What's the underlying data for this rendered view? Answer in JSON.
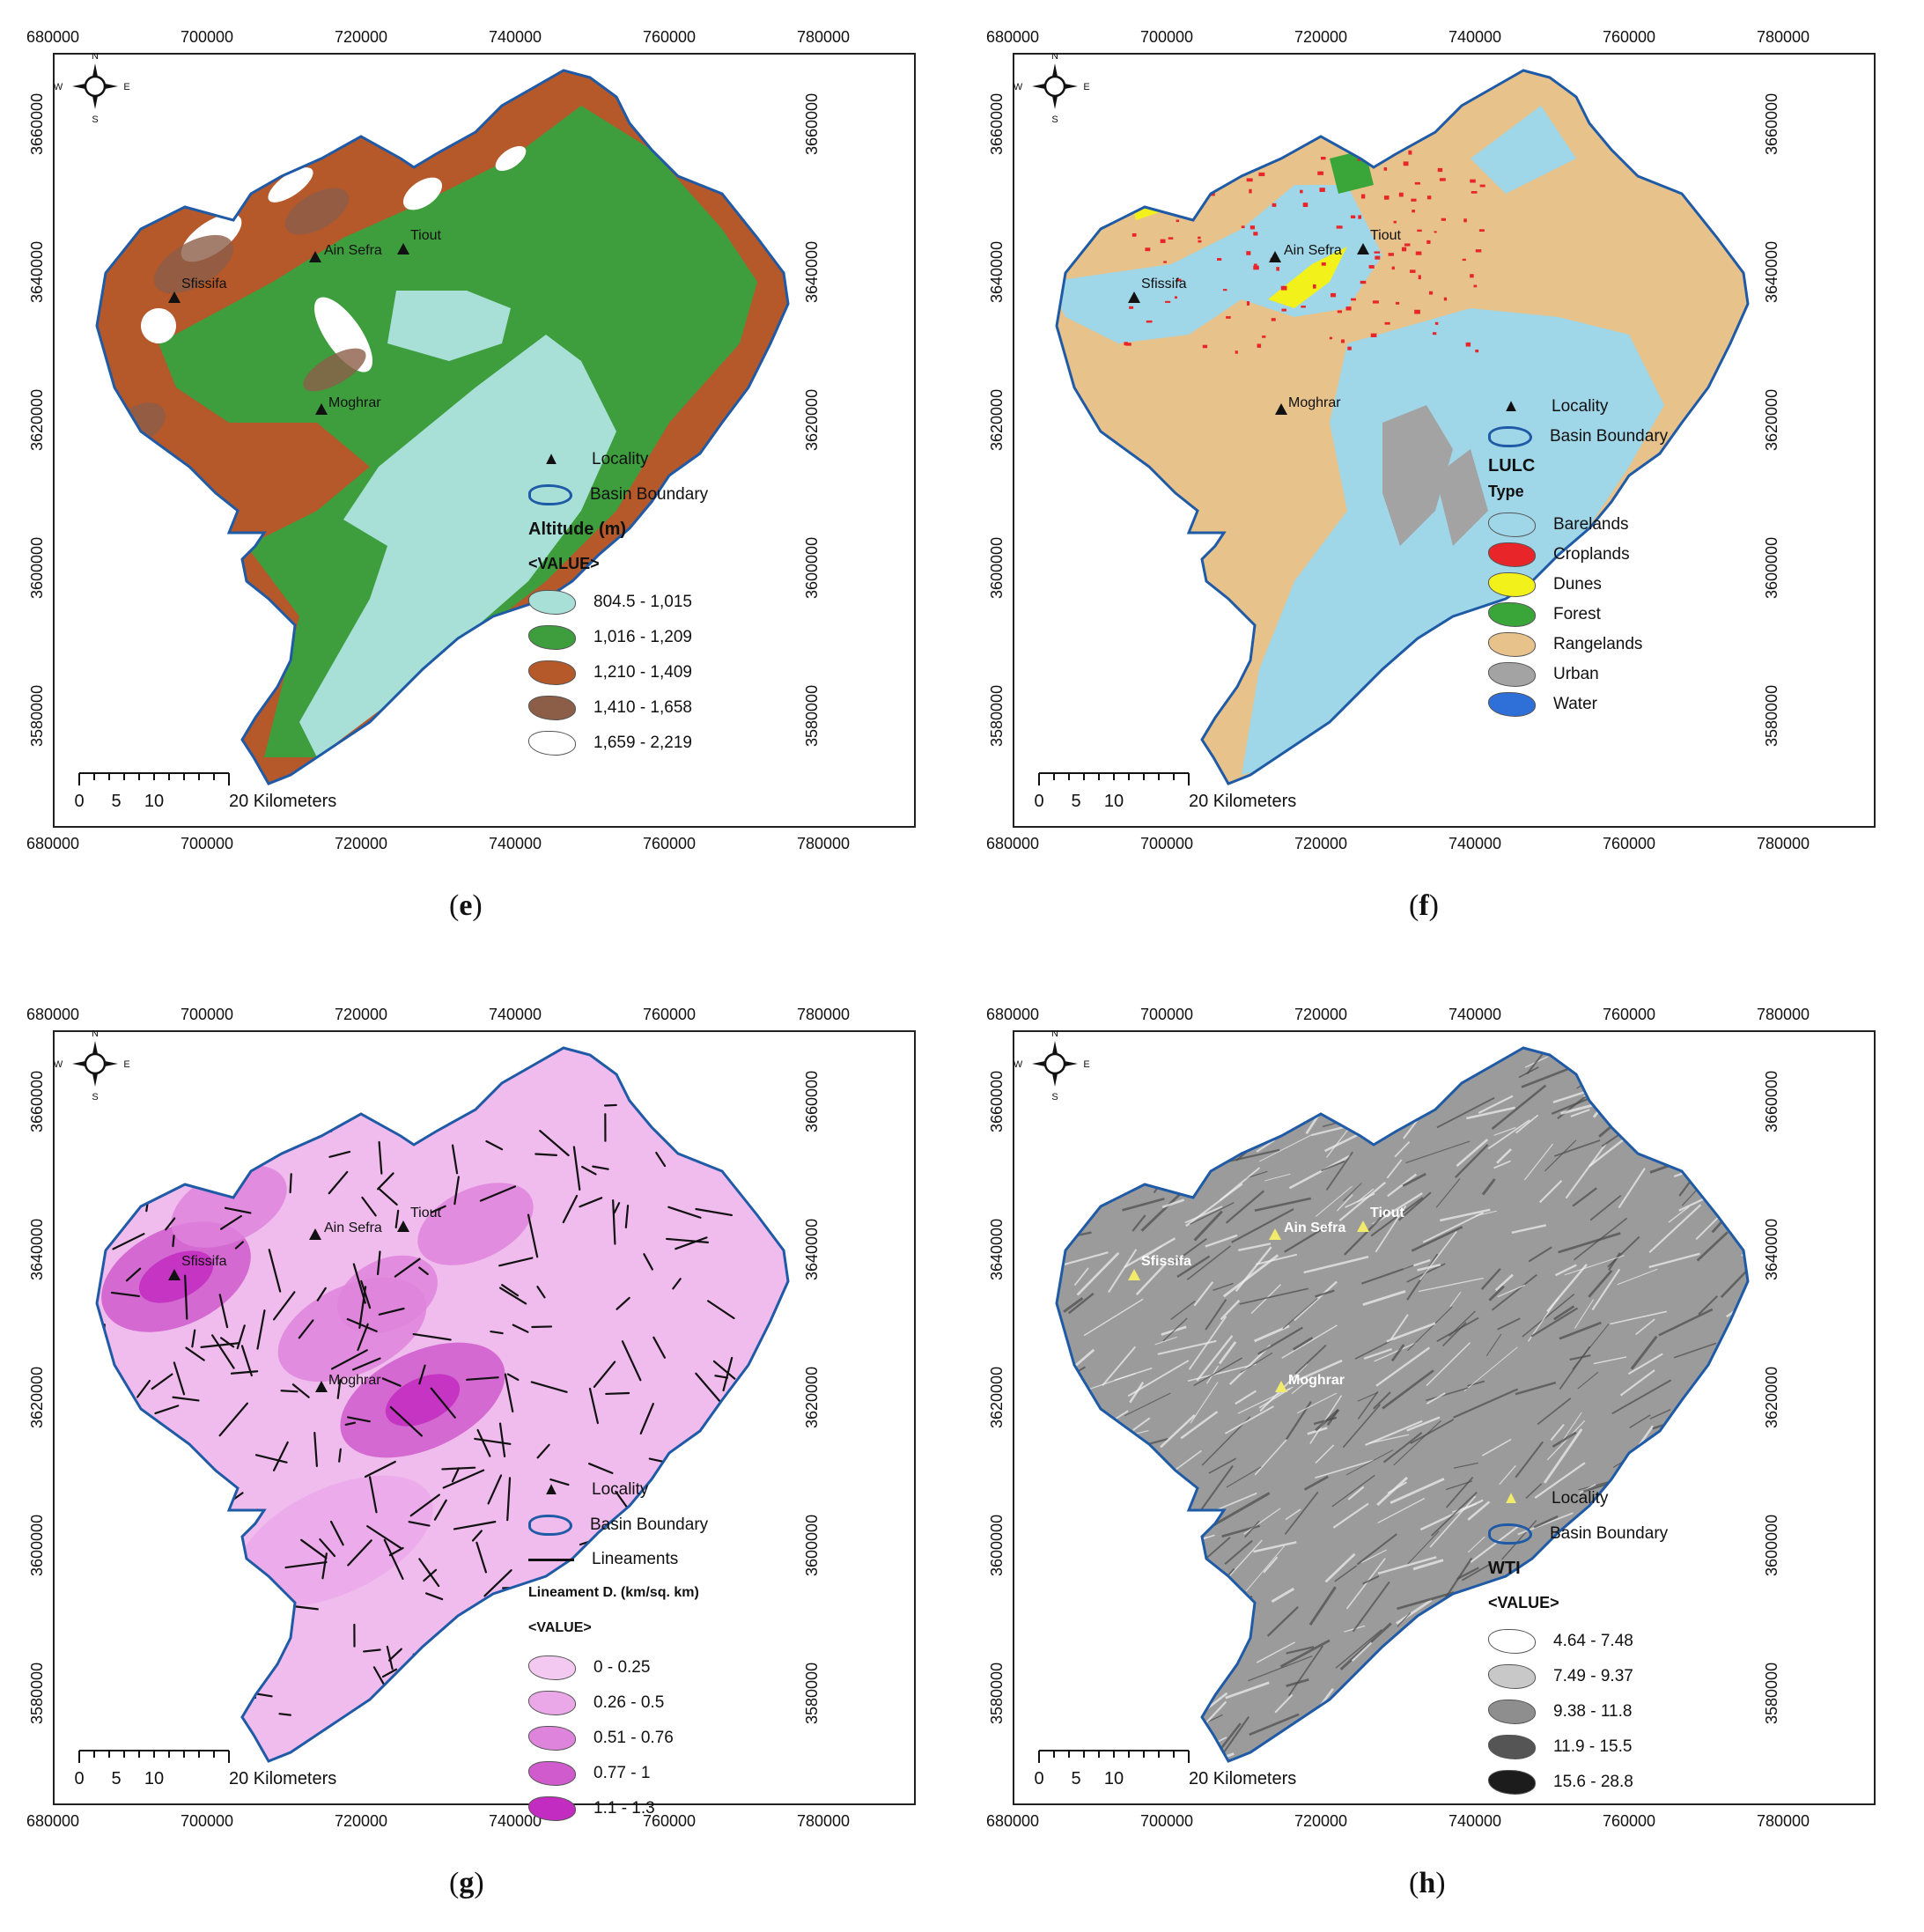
{
  "x_ticks": [
    "680000",
    "700000",
    "720000",
    "740000",
    "760000",
    "780000"
  ],
  "y_ticks": [
    "3660000",
    "3640000",
    "3620000",
    "3600000",
    "3580000"
  ],
  "compass": {
    "n": "N",
    "s": "S",
    "e": "E",
    "w": "W"
  },
  "scale": {
    "labels": [
      "0",
      "5",
      "10",
      "20 Kilometers"
    ]
  },
  "localities": [
    "Ain Sefra",
    "Tiout",
    "Sfissifa",
    "Moghrar"
  ],
  "panels": {
    "e": {
      "label": "e",
      "legend": {
        "locality": "Locality",
        "boundary": "Basin Boundary",
        "title": "Altitude (m)",
        "subtitle": "<VALUE>",
        "classes": [
          {
            "label": "804.5 - 1,015",
            "color": "#a8e0d8"
          },
          {
            "label": "1,016 - 1,209",
            "color": "#3e9e3e"
          },
          {
            "label": "1,210 - 1,409",
            "color": "#b5582a"
          },
          {
            "label": "1,410 - 1,658",
            "color": "#8c5e48"
          },
          {
            "label": "1,659 - 2,219",
            "color": "#ffffff"
          }
        ]
      }
    },
    "f": {
      "label": "f",
      "legend": {
        "locality": "Locality",
        "boundary": "Basin Boundary",
        "title": "LULC",
        "subtitle": "Type",
        "classes": [
          {
            "label": "Barelands",
            "color": "#9fd6e8"
          },
          {
            "label": "Croplands",
            "color": "#e8262a"
          },
          {
            "label": "Dunes",
            "color": "#f2f21a"
          },
          {
            "label": "Forest",
            "color": "#3aa63a"
          },
          {
            "label": "Rangelands",
            "color": "#e7c28b"
          },
          {
            "label": "Urban",
            "color": "#a3a3a3"
          },
          {
            "label": "Water",
            "color": "#2e6fd8"
          }
        ]
      }
    },
    "g": {
      "label": "g",
      "legend": {
        "locality": "Locality",
        "boundary": "Basin Boundary",
        "lineaments": "Lineaments",
        "title": "Lineament D. (km/sq. km)",
        "subtitle": "<VALUE>",
        "classes": [
          {
            "label": "0 - 0.25",
            "color": "#f3c9f1"
          },
          {
            "label": "0.26 - 0.5",
            "color": "#eba8e9"
          },
          {
            "label": "0.51 - 0.76",
            "color": "#de84dc"
          },
          {
            "label": "0.77 - 1",
            "color": "#cf5bcd"
          },
          {
            "label": "1.1 - 1.3",
            "color": "#c22cc0"
          }
        ]
      }
    },
    "h": {
      "label": "h",
      "legend": {
        "locality": "Locality",
        "boundary": "Basin Boundary",
        "title": "WTI",
        "subtitle": "<VALUE>",
        "classes": [
          {
            "label": "4.64 - 7.48",
            "color": "#ffffff"
          },
          {
            "label": "7.49 - 9.37",
            "color": "#c8c8c8"
          },
          {
            "label": "9.38 - 11.8",
            "color": "#8e8e8e"
          },
          {
            "label": "11.9 - 15.5",
            "color": "#555555"
          },
          {
            "label": "15.6 - 28.8",
            "color": "#1c1c1c"
          }
        ]
      }
    }
  }
}
